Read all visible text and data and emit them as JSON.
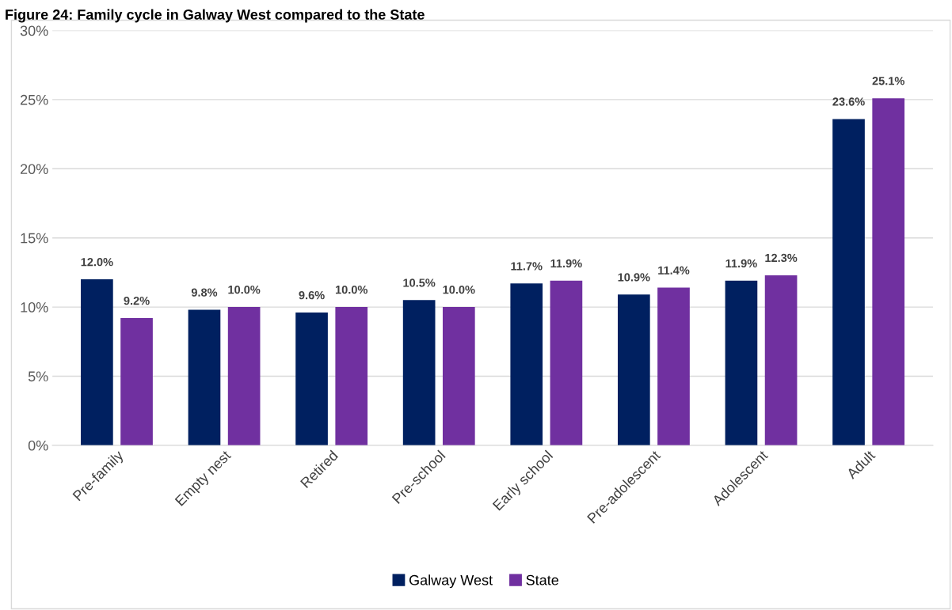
{
  "chart_data": {
    "type": "bar",
    "title": "Figure 24: Family cycle in Galway West compared to the State",
    "categories": [
      "Pre-family",
      "Empty nest",
      "Retired",
      "Pre-school",
      "Early school",
      "Pre-adolescent",
      "Adolescent",
      "Adult"
    ],
    "series": [
      {
        "name": "Galway West",
        "color": "#002060",
        "values": [
          12.0,
          9.8,
          9.6,
          10.5,
          11.7,
          10.9,
          11.9,
          23.6
        ],
        "value_labels": [
          "12.0%",
          "9.8%",
          "9.6%",
          "10.5%",
          "11.7%",
          "10.9%",
          "11.9%",
          "23.6%"
        ]
      },
      {
        "name": "State",
        "color": "#7030a0",
        "values": [
          9.2,
          10.0,
          10.0,
          10.0,
          11.9,
          11.4,
          12.3,
          25.1
        ],
        "value_labels": [
          "9.2%",
          "10.0%",
          "10.0%",
          "10.0%",
          "11.9%",
          "11.4%",
          "12.3%",
          "25.1%"
        ]
      }
    ],
    "ylim": [
      0,
      30
    ],
    "yticks": [
      {
        "value": 0,
        "label": "0%"
      },
      {
        "value": 5,
        "label": "5%"
      },
      {
        "value": 10,
        "label": "10%"
      },
      {
        "value": 15,
        "label": "15%"
      },
      {
        "value": 20,
        "label": "20%"
      },
      {
        "value": 25,
        "label": "25%"
      },
      {
        "value": 30,
        "label": "30%"
      }
    ],
    "grid": "y",
    "legend": "bottom"
  }
}
